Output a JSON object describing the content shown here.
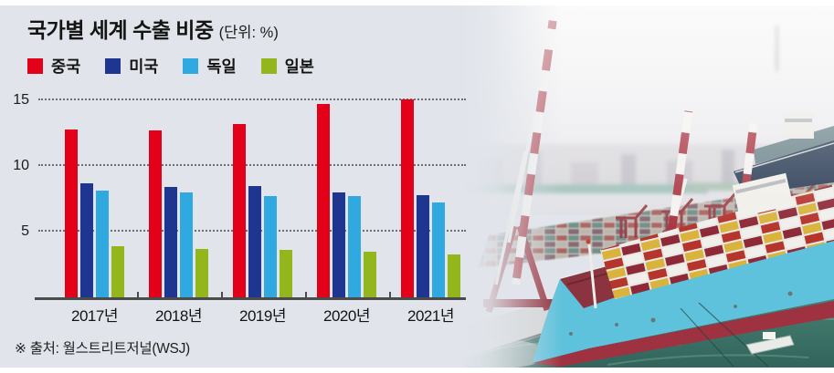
{
  "header": {
    "title": "국가별 세계 수출 비중",
    "unit_note": "(단위: %)"
  },
  "source_note": "※ 출처: 월스트리트저널(WSJ)",
  "chart_data": {
    "type": "bar",
    "title": "국가별 세계 수출 비중",
    "unit": "%",
    "categories": [
      "2017년",
      "2018년",
      "2019년",
      "2020년",
      "2021년"
    ],
    "series": [
      {
        "key": "china",
        "name": "중국",
        "color": "#e30019",
        "values": [
          12.8,
          12.7,
          13.2,
          14.7,
          15.1
        ]
      },
      {
        "key": "usa",
        "name": "미국",
        "color": "#1f3690",
        "values": [
          8.7,
          8.4,
          8.5,
          8.0,
          7.8
        ]
      },
      {
        "key": "germany",
        "name": "독일",
        "color": "#30a8e0",
        "values": [
          8.1,
          8.0,
          7.7,
          7.7,
          7.2
        ]
      },
      {
        "key": "japan",
        "name": "일본",
        "color": "#93b61d",
        "values": [
          3.9,
          3.7,
          3.6,
          3.5,
          3.3
        ]
      }
    ],
    "xlabel": "",
    "ylabel": "",
    "yticks": [
      5,
      10,
      15
    ],
    "ylim": [
      0,
      15.7
    ],
    "grid": "dotted-horizontal",
    "legend_position": "top"
  },
  "photo": {
    "description": "container port: red-and-white striped gantry cranes, container yard, and a turquoise cargo ship loaded with containers on green water"
  },
  "ui_colors": {
    "panel_background": "#e1e5eb",
    "axis": "#4b4b4b",
    "gridline": "#6e6e6e",
    "text": "#141414"
  }
}
